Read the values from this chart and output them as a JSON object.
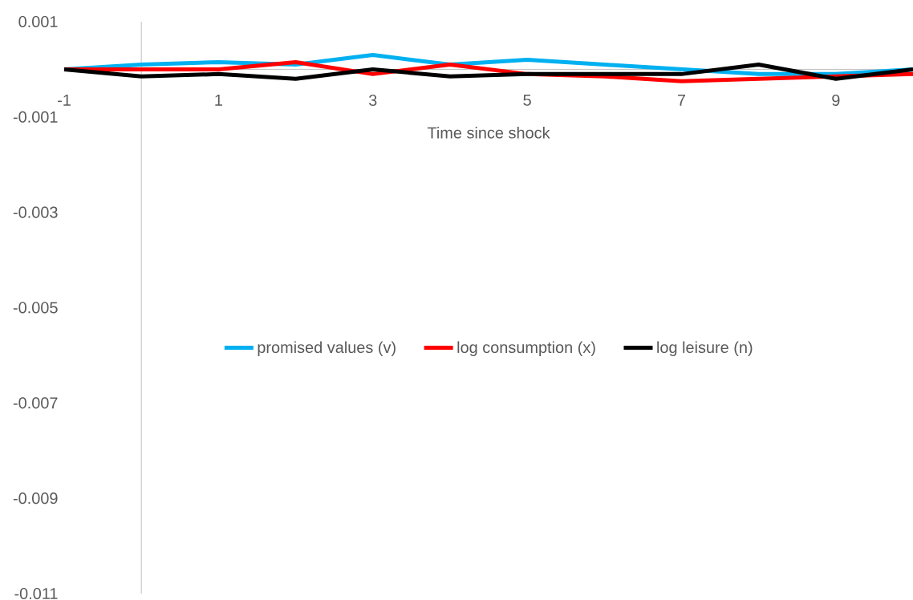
{
  "chart_data": {
    "type": "line",
    "xlabel": "Time since shock",
    "x": [
      -1,
      0,
      1,
      2,
      3,
      4,
      5,
      6,
      7,
      8,
      9,
      10
    ],
    "series": [
      {
        "name": "promised values (v)",
        "color": "#00b0f0",
        "values": [
          0,
          0.0001,
          0.00015,
          0.0001,
          0.0003,
          0.0001,
          0.0002,
          0.0001,
          0,
          -0.0001,
          -0.0001,
          0
        ]
      },
      {
        "name": "log consumption (x)",
        "color": "#ff0000",
        "values": [
          0,
          0,
          0,
          0.00015,
          -0.0001,
          0.0001,
          -0.0001,
          -0.00015,
          -0.00025,
          -0.0002,
          -0.00015,
          -0.0001
        ]
      },
      {
        "name": "log leisure (n)",
        "color": "#000000",
        "values": [
          0,
          -0.00015,
          -0.0001,
          -0.0002,
          0,
          -0.00015,
          -0.0001,
          -0.0001,
          -0.0001,
          0.0001,
          -0.0002,
          0
        ]
      }
    ],
    "xlim": [
      -1,
      10
    ],
    "ylim": [
      -0.011,
      0.001
    ],
    "xticks": [
      -1,
      1,
      3,
      5,
      7,
      9
    ],
    "yticks": [
      0.001,
      -0.001,
      -0.003,
      -0.005,
      -0.007,
      -0.009,
      -0.011
    ],
    "legend": "center",
    "marker": "none",
    "line_style": "solid",
    "grid": false
  }
}
